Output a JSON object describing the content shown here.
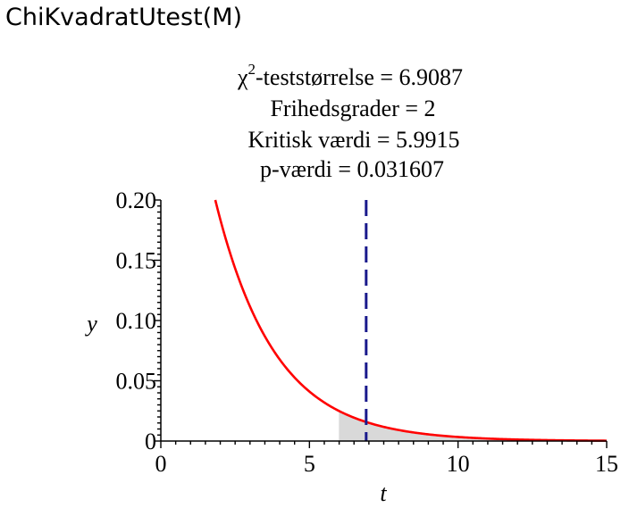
{
  "command": {
    "name": "ChiKvadratUtest",
    "open_paren": "(",
    "arg": "M",
    "close_paren": ")"
  },
  "chart_data": {
    "type": "area",
    "title_lines": {
      "stat_symbol": "χ",
      "stat_exponent": "2",
      "stat_rest": "-teststørrelse = 6.9087",
      "dof": "Frihedsgrader = 2",
      "critical": "Kritisk værdi  =  5.9915",
      "pvalue": "p-værdi = 0.031607"
    },
    "xlabel": "t",
    "ylabel": "y",
    "xlim": [
      0,
      15
    ],
    "ylim": [
      0,
      0.2
    ],
    "x_ticks": [
      0,
      5,
      10,
      15
    ],
    "x_tick_labels": [
      "0",
      "5",
      "10",
      "15"
    ],
    "y_ticks": [
      0,
      0.05,
      0.1,
      0.15,
      0.2
    ],
    "y_tick_labels": [
      "0",
      "0.05",
      "0.10",
      "0.15",
      "0.20"
    ],
    "series": [
      {
        "kind": "chi-square density",
        "degrees_of_freedom": 2,
        "color": "#ff0000"
      }
    ],
    "shaded_region": {
      "from": 5.9915,
      "to": 15,
      "color": "#d9d9d9"
    },
    "vertical_line": {
      "x": 6.9087,
      "style": "dashed",
      "color": "#1a1a8c"
    },
    "grid": false
  }
}
